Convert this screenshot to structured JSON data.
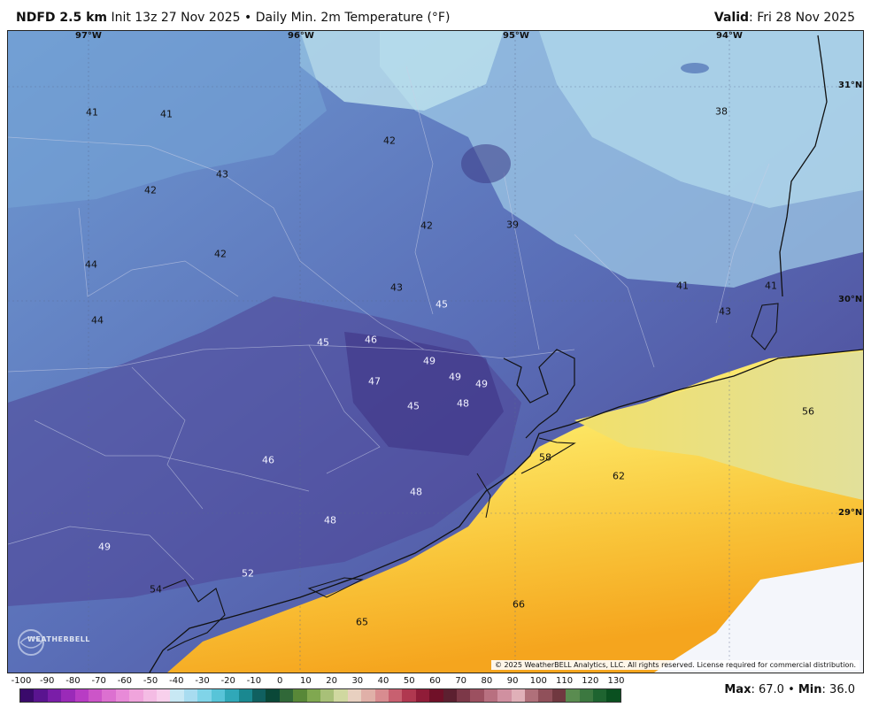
{
  "header": {
    "title_bold": "NDFD 2.5 km",
    "title_rest": "Init 13z 27 Nov 2025 • Daily Min. 2m Temperature (°F)",
    "valid_label": "Valid",
    "valid_value": ": Fri 28 Nov 2025"
  },
  "map": {
    "lon_labels": [
      "97°W",
      "96°W",
      "95°W",
      "94°W"
    ],
    "lat_labels": [
      "31°N",
      "30°N",
      "29°N"
    ],
    "temperature_labels": [
      "41",
      "41",
      "42",
      "43",
      "42",
      "44",
      "42",
      "44",
      "42",
      "42",
      "39",
      "38",
      "43",
      "45",
      "41",
      "41",
      "43",
      "45",
      "46",
      "49",
      "49",
      "49",
      "47",
      "45",
      "48",
      "56",
      "46",
      "58",
      "62",
      "48",
      "48",
      "49",
      "52",
      "54",
      "66",
      "65"
    ],
    "copyright": "© 2025 WeatherBELL Analytics, LLC. All rights reserved. License required for commercial distribution.",
    "logo_text": "WEATHERBELL",
    "logo_icon": "weatherbell-logo-icon"
  },
  "legend": {
    "ticks": [
      "-100",
      "-90",
      "-80",
      "-70",
      "-60",
      "-50",
      "-40",
      "-30",
      "-20",
      "-10",
      "0",
      "10",
      "20",
      "30",
      "40",
      "50",
      "60",
      "70",
      "80",
      "90",
      "100",
      "110",
      "120",
      "130"
    ],
    "colors": [
      "#3a0a6b",
      "#5a1490",
      "#7a1ea8",
      "#9a2ab8",
      "#b83cc4",
      "#cc55c8",
      "#dc70d0",
      "#e88ad8",
      "#f0a4dc",
      "#f4bce4",
      "#f8d0ec",
      "#c8e8f4",
      "#a8dcf0",
      "#80d4e8",
      "#58c4d8",
      "#30a8b8",
      "#1a8890",
      "#106060",
      "#0a4838",
      "#306838",
      "#588838",
      "#80a850",
      "#a8c078",
      "#d0d8a0",
      "#e8d0c0",
      "#e0b0a8",
      "#d88c90",
      "#c86070",
      "#b03850",
      "#901c38",
      "#701028",
      "#5c2030",
      "#7c3848",
      "#9c5060",
      "#b87080",
      "#d090a0",
      "#e0b0b8",
      "#b0707a",
      "#90505a",
      "#703840",
      "#5a8c50",
      "#3c7840",
      "#1e6430",
      "#0a5020"
    ],
    "max_label": "Max",
    "max_value": ": 67.0",
    "min_label": "Min",
    "min_value": ": 36.0",
    "separator": " • "
  }
}
